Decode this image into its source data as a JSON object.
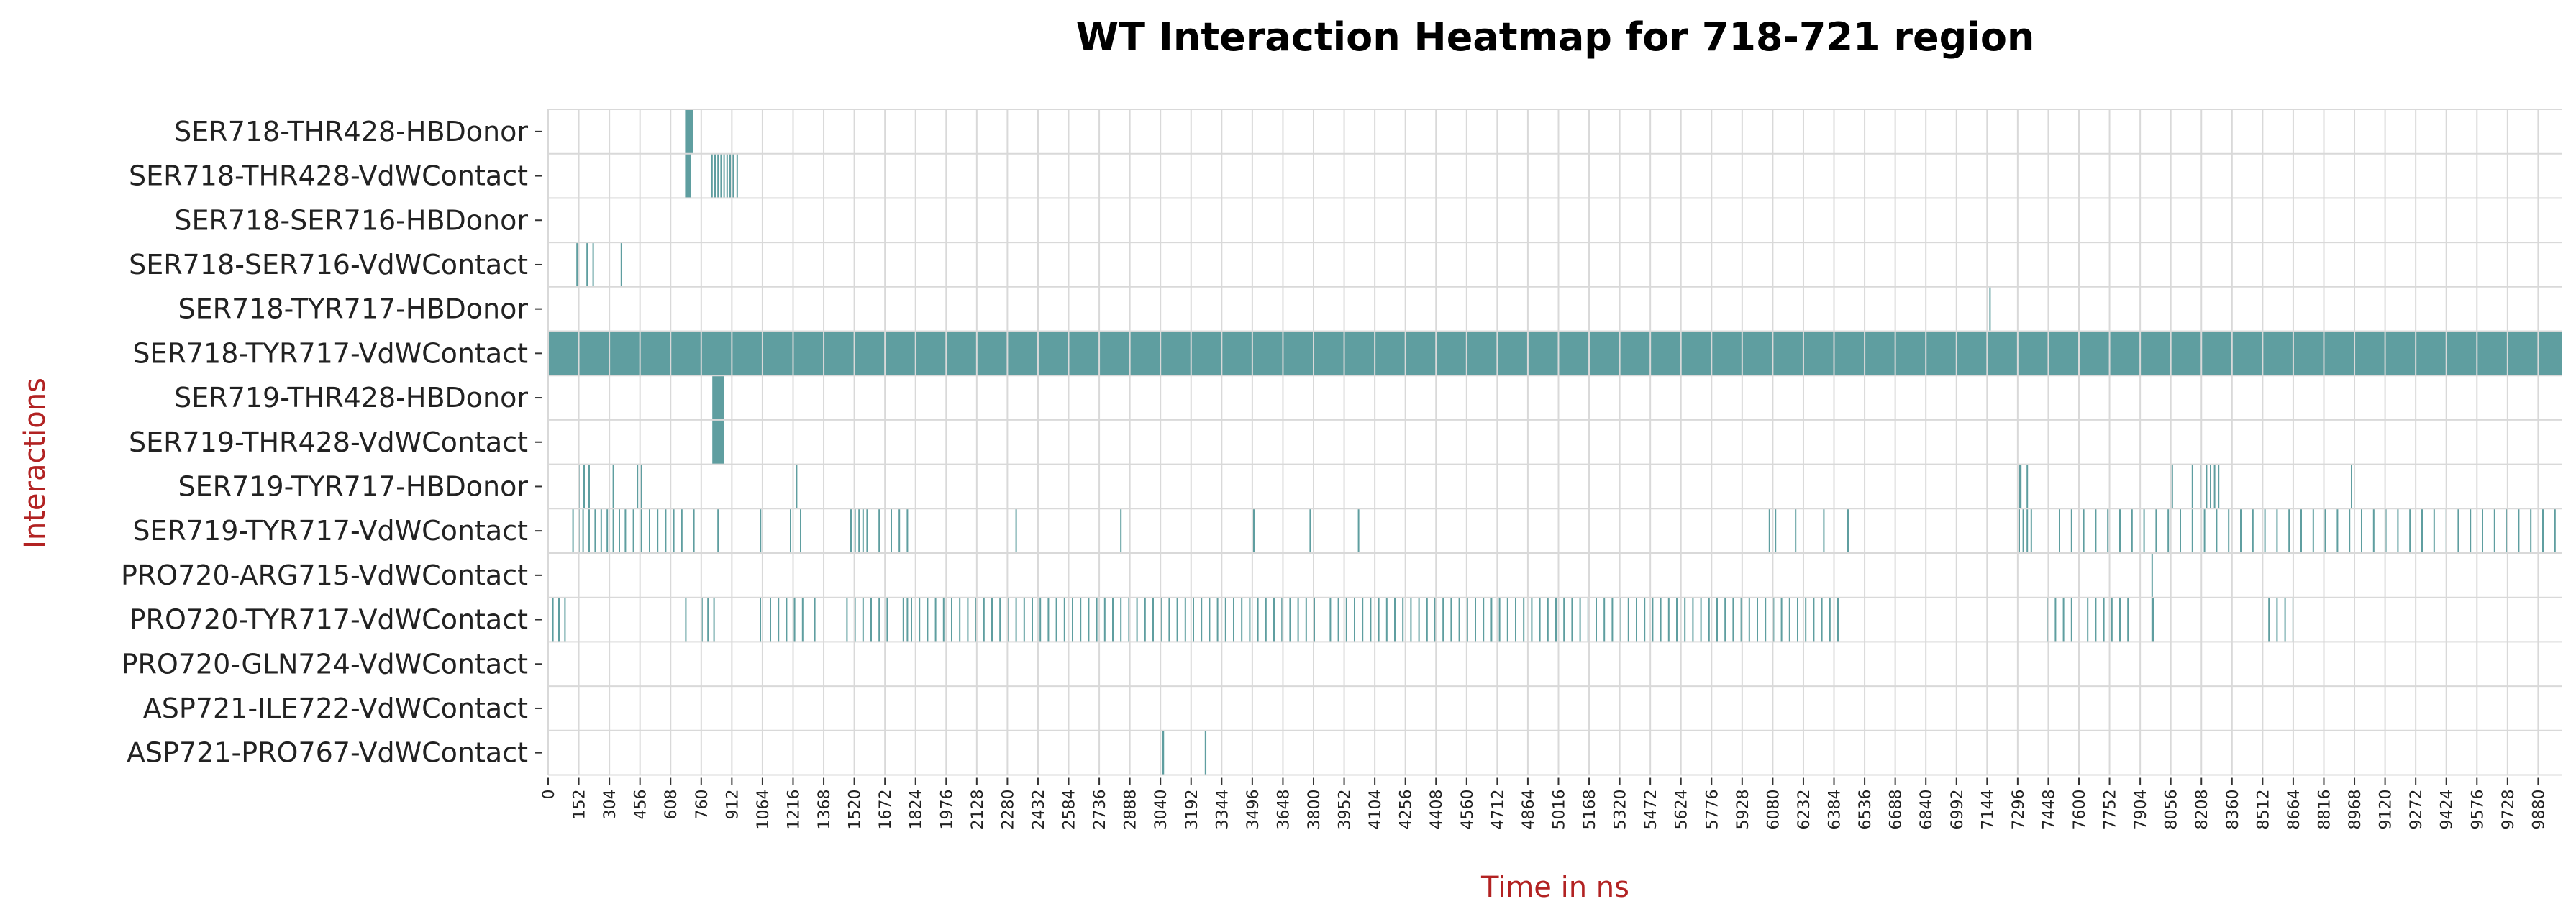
{
  "chart_data": {
    "type": "heatmap",
    "title": "WT Interaction Heatmap for 718-721 region",
    "xlabel": "Time in ns",
    "ylabel": "Interactions",
    "x_range": [
      0,
      10000
    ],
    "x_tick_step": 152,
    "grid": true,
    "colors": {
      "on": "#5f9ea0",
      "off": "#ffffff",
      "grid": "#d9d9d9",
      "label": "#b22222"
    },
    "rows": [
      {
        "label": "SER718-THR428-HBDonor",
        "intervals": [
          [
            680,
            720
          ]
        ]
      },
      {
        "label": "SER718-THR428-VdWContact",
        "intervals": [
          [
            680,
            710
          ],
          [
            810,
            815
          ],
          [
            825,
            830
          ],
          [
            840,
            846
          ],
          [
            855,
            860
          ],
          [
            870,
            875
          ],
          [
            885,
            890
          ],
          [
            900,
            905
          ],
          [
            915,
            920
          ],
          [
            935,
            940
          ]
        ]
      },
      {
        "label": "SER718-SER716-HBDonor",
        "intervals": []
      },
      {
        "label": "SER718-SER716-VdWContact",
        "intervals": [
          [
            140,
            145
          ],
          [
            190,
            196
          ],
          [
            220,
            225
          ],
          [
            360,
            365
          ]
        ]
      },
      {
        "label": "SER718-TYR717-HBDonor",
        "intervals": [
          [
            7155,
            7162
          ]
        ]
      },
      {
        "label": "SER718-TYR717-VdWContact",
        "intervals": [
          [
            0,
            10000
          ]
        ]
      },
      {
        "label": "SER719-THR428-HBDonor",
        "intervals": [
          [
            815,
            875
          ]
        ]
      },
      {
        "label": "SER719-THR428-VdWContact",
        "intervals": [
          [
            815,
            875
          ]
        ]
      },
      {
        "label": "SER719-TYR717-HBDonor",
        "intervals": [
          [
            150,
            155
          ],
          [
            175,
            180
          ],
          [
            200,
            206
          ],
          [
            320,
            325
          ],
          [
            440,
            446
          ],
          [
            460,
            466
          ],
          [
            1230,
            1236
          ],
          [
            7300,
            7315
          ],
          [
            7340,
            7345
          ],
          [
            8060,
            8066
          ],
          [
            8160,
            8166
          ],
          [
            8200,
            8206
          ],
          [
            8230,
            8236
          ],
          [
            8250,
            8256
          ],
          [
            8270,
            8276
          ],
          [
            8290,
            8296
          ],
          [
            8950,
            8956
          ]
        ]
      },
      {
        "label": "SER719-TYR717-VdWContact",
        "intervals": [
          [
            120,
            126
          ],
          [
            150,
            156
          ],
          [
            170,
            175
          ],
          [
            200,
            206
          ],
          [
            230,
            236
          ],
          [
            260,
            266
          ],
          [
            290,
            296
          ],
          [
            320,
            326
          ],
          [
            350,
            356
          ],
          [
            380,
            386
          ],
          [
            420,
            426
          ],
          [
            460,
            466
          ],
          [
            500,
            506
          ],
          [
            540,
            546
          ],
          [
            580,
            586
          ],
          [
            620,
            626
          ],
          [
            660,
            666
          ],
          [
            720,
            726
          ],
          [
            840,
            846
          ],
          [
            1050,
            1058
          ],
          [
            1200,
            1206
          ],
          [
            1250,
            1256
          ],
          [
            1500,
            1506
          ],
          [
            1520,
            1526
          ],
          [
            1540,
            1546
          ],
          [
            1560,
            1566
          ],
          [
            1580,
            1586
          ],
          [
            1640,
            1646
          ],
          [
            1700,
            1706
          ],
          [
            1740,
            1746
          ],
          [
            1780,
            1786
          ],
          [
            2320,
            2326
          ],
          [
            2840,
            2846
          ],
          [
            3500,
            3506
          ],
          [
            3780,
            3786
          ],
          [
            4020,
            4026
          ],
          [
            6060,
            6066
          ],
          [
            6090,
            6096
          ],
          [
            6190,
            6196
          ],
          [
            6330,
            6336
          ],
          [
            6450,
            6456
          ],
          [
            7300,
            7306
          ],
          [
            7320,
            7326
          ],
          [
            7340,
            7346
          ],
          [
            7360,
            7366
          ],
          [
            7500,
            7506
          ],
          [
            7560,
            7566
          ],
          [
            7620,
            7626
          ],
          [
            7680,
            7686
          ],
          [
            7740,
            7746
          ],
          [
            7800,
            7806
          ],
          [
            7860,
            7866
          ],
          [
            7920,
            7926
          ],
          [
            7980,
            7986
          ],
          [
            8040,
            8046
          ],
          [
            8100,
            8106
          ],
          [
            8160,
            8166
          ],
          [
            8220,
            8226
          ],
          [
            8280,
            8286
          ],
          [
            8340,
            8346
          ],
          [
            8400,
            8406
          ],
          [
            8460,
            8466
          ],
          [
            8520,
            8526
          ],
          [
            8580,
            8586
          ],
          [
            8640,
            8646
          ],
          [
            8700,
            8706
          ],
          [
            8760,
            8766
          ],
          [
            8820,
            8826
          ],
          [
            8880,
            8886
          ],
          [
            8940,
            8946
          ],
          [
            9000,
            9006
          ],
          [
            9060,
            9066
          ],
          [
            9120,
            9126
          ],
          [
            9180,
            9186
          ],
          [
            9240,
            9246
          ],
          [
            9300,
            9306
          ],
          [
            9360,
            9366
          ],
          [
            9420,
            9426
          ],
          [
            9480,
            9486
          ],
          [
            9540,
            9546
          ],
          [
            9600,
            9606
          ],
          [
            9660,
            9666
          ],
          [
            9720,
            9726
          ],
          [
            9780,
            9786
          ],
          [
            9840,
            9846
          ],
          [
            9900,
            9906
          ],
          [
            9960,
            9966
          ]
        ]
      },
      {
        "label": "PRO720-ARG715-VdWContact",
        "intervals": [
          [
            7960,
            7966
          ]
        ]
      },
      {
        "label": "PRO720-TYR717-VdWContact",
        "intervals": [
          [
            20,
            26
          ],
          [
            50,
            56
          ],
          [
            80,
            86
          ],
          [
            680,
            686
          ],
          [
            760,
            766
          ],
          [
            790,
            796
          ],
          [
            820,
            826
          ],
          [
            1050,
            1056
          ],
          [
            1100,
            1106
          ],
          [
            1140,
            1146
          ],
          [
            1180,
            1186
          ],
          [
            1220,
            1226
          ],
          [
            1260,
            1266
          ],
          [
            1320,
            1326
          ],
          [
            1480,
            1486
          ],
          [
            1520,
            1526
          ],
          [
            1560,
            1566
          ],
          [
            1600,
            1606
          ],
          [
            1640,
            1646
          ],
          [
            1680,
            1686
          ],
          [
            1760,
            1766
          ],
          [
            1780,
            1786
          ],
          [
            1800,
            1806
          ],
          [
            1840,
            1846
          ],
          [
            1880,
            1886
          ],
          [
            1920,
            1926
          ],
          [
            1960,
            1966
          ],
          [
            2000,
            2006
          ],
          [
            2040,
            2046
          ],
          [
            2080,
            2086
          ],
          [
            2120,
            2126
          ],
          [
            2160,
            2166
          ],
          [
            2200,
            2206
          ],
          [
            2240,
            2246
          ],
          [
            2280,
            2286
          ],
          [
            2320,
            2326
          ],
          [
            2360,
            2366
          ],
          [
            2400,
            2406
          ],
          [
            2440,
            2446
          ],
          [
            2480,
            2486
          ],
          [
            2520,
            2526
          ],
          [
            2560,
            2566
          ],
          [
            2600,
            2606
          ],
          [
            2640,
            2646
          ],
          [
            2680,
            2686
          ],
          [
            2720,
            2726
          ],
          [
            2760,
            2766
          ],
          [
            2800,
            2806
          ],
          [
            2840,
            2846
          ],
          [
            2880,
            2886
          ],
          [
            2920,
            2926
          ],
          [
            2960,
            2966
          ],
          [
            3000,
            3006
          ],
          [
            3040,
            3046
          ],
          [
            3080,
            3086
          ],
          [
            3120,
            3126
          ],
          [
            3160,
            3166
          ],
          [
            3200,
            3206
          ],
          [
            3240,
            3246
          ],
          [
            3280,
            3286
          ],
          [
            3320,
            3326
          ],
          [
            3360,
            3366
          ],
          [
            3400,
            3406
          ],
          [
            3440,
            3446
          ],
          [
            3480,
            3486
          ],
          [
            3520,
            3526
          ],
          [
            3560,
            3566
          ],
          [
            3600,
            3606
          ],
          [
            3640,
            3646
          ],
          [
            3680,
            3686
          ],
          [
            3720,
            3726
          ],
          [
            3760,
            3766
          ],
          [
            3800,
            3806
          ],
          [
            3880,
            3886
          ],
          [
            3920,
            3926
          ],
          [
            3960,
            3966
          ],
          [
            4000,
            4006
          ],
          [
            4040,
            4046
          ],
          [
            4080,
            4086
          ],
          [
            4120,
            4126
          ],
          [
            4160,
            4166
          ],
          [
            4200,
            4206
          ],
          [
            4240,
            4246
          ],
          [
            4280,
            4286
          ],
          [
            4320,
            4326
          ],
          [
            4360,
            4366
          ],
          [
            4400,
            4406
          ],
          [
            4440,
            4446
          ],
          [
            4480,
            4486
          ],
          [
            4520,
            4526
          ],
          [
            4560,
            4566
          ],
          [
            4600,
            4606
          ],
          [
            4640,
            4646
          ],
          [
            4680,
            4686
          ],
          [
            4720,
            4726
          ],
          [
            4760,
            4766
          ],
          [
            4800,
            4806
          ],
          [
            4840,
            4846
          ],
          [
            4880,
            4886
          ],
          [
            4920,
            4926
          ],
          [
            4960,
            4966
          ],
          [
            5000,
            5006
          ],
          [
            5040,
            5046
          ],
          [
            5080,
            5086
          ],
          [
            5120,
            5126
          ],
          [
            5160,
            5166
          ],
          [
            5200,
            5206
          ],
          [
            5240,
            5246
          ],
          [
            5280,
            5286
          ],
          [
            5320,
            5326
          ],
          [
            5360,
            5366
          ],
          [
            5400,
            5406
          ],
          [
            5440,
            5446
          ],
          [
            5480,
            5486
          ],
          [
            5520,
            5526
          ],
          [
            5560,
            5566
          ],
          [
            5600,
            5606
          ],
          [
            5640,
            5646
          ],
          [
            5680,
            5686
          ],
          [
            5720,
            5726
          ],
          [
            5760,
            5766
          ],
          [
            5800,
            5806
          ],
          [
            5840,
            5846
          ],
          [
            5880,
            5886
          ],
          [
            5920,
            5926
          ],
          [
            5960,
            5966
          ],
          [
            6000,
            6006
          ],
          [
            6040,
            6046
          ],
          [
            6080,
            6086
          ],
          [
            6120,
            6126
          ],
          [
            6160,
            6166
          ],
          [
            6200,
            6206
          ],
          [
            6240,
            6246
          ],
          [
            6280,
            6286
          ],
          [
            6320,
            6326
          ],
          [
            6360,
            6366
          ],
          [
            6400,
            6406
          ],
          [
            7440,
            7446
          ],
          [
            7480,
            7486
          ],
          [
            7520,
            7526
          ],
          [
            7560,
            7566
          ],
          [
            7600,
            7606
          ],
          [
            7640,
            7646
          ],
          [
            7680,
            7686
          ],
          [
            7720,
            7726
          ],
          [
            7760,
            7766
          ],
          [
            7800,
            7806
          ],
          [
            7840,
            7846
          ],
          [
            7960,
            7975
          ],
          [
            8540,
            8546
          ],
          [
            8580,
            8586
          ],
          [
            8620,
            8626
          ],
          [
            8660,
            8666
          ]
        ]
      },
      {
        "label": "PRO720-GLN724-VdWContact",
        "intervals": []
      },
      {
        "label": "ASP721-ILE722-VdWContact",
        "intervals": []
      },
      {
        "label": "ASP721-PRO767-VdWContact",
        "intervals": [
          [
            3050,
            3058
          ],
          [
            3260,
            3268
          ]
        ]
      }
    ]
  }
}
